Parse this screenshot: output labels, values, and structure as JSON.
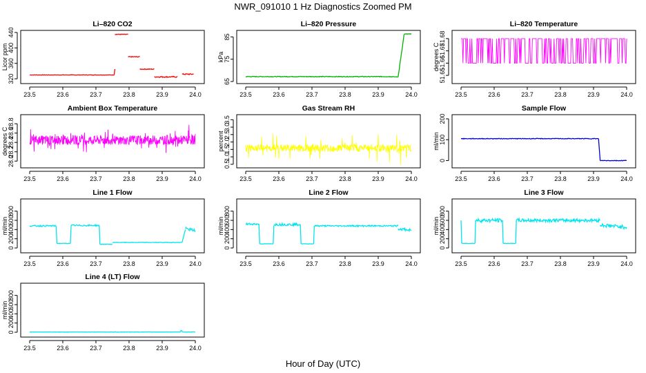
{
  "figure": {
    "title": "NWR_091010  1 Hz Diagnostics Zoomed PM",
    "xlabel": "Hour of Day (UTC)"
  },
  "chart_data": [
    {
      "type": "line",
      "title": "Li–820 CO2",
      "ylabel": "Licor ppm",
      "xlim": [
        23.5,
        24.0
      ],
      "xticks": [
        "23.5",
        "23.6",
        "23.7",
        "23.8",
        "23.9",
        "24.0"
      ],
      "ylim": [
        313,
        440
      ],
      "yticks": [
        "320",
        "360",
        "400",
        "440"
      ],
      "color": "#ff0000",
      "segments": [
        [
          23.5,
          330,
          23.755,
          330,
          0.5
        ],
        [
          23.755,
          330,
          23.757,
          345,
          0.5
        ],
        [
          23.757,
          435,
          23.797,
          435,
          0.8
        ],
        [
          23.797,
          377,
          23.832,
          377,
          1
        ],
        [
          23.832,
          345,
          23.876,
          345,
          1
        ],
        [
          23.876,
          325,
          23.946,
          325,
          1.5
        ],
        [
          23.96,
          332,
          23.995,
          332,
          1.5
        ]
      ]
    },
    {
      "type": "line",
      "title": "Li–820 Pressure",
      "ylabel": "kPa",
      "xlim": [
        23.5,
        24.0
      ],
      "xticks": [
        "23.5",
        "23.6",
        "23.7",
        "23.8",
        "23.9",
        "24.0"
      ],
      "ylim": [
        65,
        87
      ],
      "yticks": [
        "65",
        "75",
        "85"
      ],
      "color": "#00b000",
      "segments": [
        [
          23.5,
          67.2,
          23.95,
          67.2,
          0.15
        ],
        [
          23.95,
          67,
          23.96,
          67,
          0.15
        ],
        [
          23.96,
          67,
          23.978,
          86,
          0.3
        ],
        [
          23.978,
          86.3,
          24.0,
          86.3,
          0.15
        ]
      ]
    },
    {
      "type": "line",
      "title": "Li–820 Temperature",
      "ylabel": "degrees C",
      "xlim": [
        23.5,
        24.0
      ],
      "xticks": [
        "23.5",
        "23.6",
        "23.7",
        "23.8",
        "23.9",
        "24.0"
      ],
      "ylim": [
        51.645,
        51.685
      ],
      "yticks": [
        "51.65",
        "51.66",
        "51.67",
        "51.68"
      ],
      "color": "#ff00ff",
      "binary": [
        51.66,
        51.68
      ]
    },
    {
      "type": "line",
      "title": "Ambient Box Temperature",
      "ylabel": "degrees C",
      "xlim": [
        23.5,
        24.0
      ],
      "xticks": [
        "23.5",
        "23.6",
        "23.7",
        "23.8",
        "23.9",
        "24.0"
      ],
      "ylim": [
        27.9,
        28.95
      ],
      "yticks": [
        "28.0",
        "28.2",
        "28.4",
        "28.6",
        "28.8"
      ],
      "color": "#ff00ff",
      "noise": [
        28.45,
        0.1,
        0.25
      ]
    },
    {
      "type": "line",
      "title": "Gas Stream RH",
      "ylabel": "percent",
      "xlim": [
        23.5,
        24.0
      ],
      "xticks": [
        "23.5",
        "23.6",
        "23.7",
        "23.8",
        "23.9",
        "24.0"
      ],
      "ylim": [
        0.4,
        3.7
      ],
      "yticks": [
        "0.5",
        "1.0",
        "1.5",
        "2.0",
        "2.5",
        "3.0",
        "3.5"
      ],
      "color": "#ffff00",
      "noise": [
        1.6,
        0.25,
        0.9
      ]
    },
    {
      "type": "line",
      "title": "Sample Flow",
      "ylabel": "ml/min",
      "xlim": [
        23.5,
        24.0
      ],
      "xticks": [
        "23.5",
        "23.6",
        "23.7",
        "23.8",
        "23.9",
        "24.0"
      ],
      "ylim": [
        -25,
        210
      ],
      "yticks": [
        "0",
        "100",
        "200"
      ],
      "color": "#0000cc",
      "segments": [
        [
          23.5,
          105,
          23.915,
          105,
          1.5
        ],
        [
          23.915,
          105,
          23.92,
          0,
          1
        ],
        [
          23.92,
          0,
          24.0,
          0,
          1.5
        ]
      ]
    },
    {
      "type": "line",
      "title": "Line 1 Flow",
      "ylabel": "ml/min",
      "xlim": [
        23.5,
        24.0
      ],
      "xticks": [
        "23.5",
        "23.6",
        "23.7",
        "23.8",
        "23.9",
        "24.0"
      ],
      "ylim": [
        -60,
        1020
      ],
      "yticks": [
        "0",
        "200",
        "400",
        "600",
        "800"
      ],
      "color": "#00e5ee",
      "segments": [
        [
          23.5,
          480,
          23.58,
          480,
          15
        ],
        [
          23.58,
          480,
          23.582,
          100,
          4
        ],
        [
          23.582,
          100,
          23.623,
          100,
          4
        ],
        [
          23.623,
          100,
          23.625,
          490,
          4
        ],
        [
          23.625,
          490,
          23.71,
          490,
          15
        ],
        [
          23.71,
          490,
          23.712,
          80,
          4
        ],
        [
          23.712,
          80,
          23.75,
          80,
          5
        ],
        [
          23.75,
          120,
          23.96,
          120,
          5
        ],
        [
          23.96,
          120,
          23.97,
          400,
          10
        ],
        [
          23.97,
          420,
          24.0,
          380,
          30
        ]
      ]
    },
    {
      "type": "line",
      "title": "Line 2 Flow",
      "ylabel": "ml/min",
      "xlim": [
        23.5,
        24.0
      ],
      "xticks": [
        "23.5",
        "23.6",
        "23.7",
        "23.8",
        "23.9",
        "24.0"
      ],
      "ylim": [
        -60,
        1020
      ],
      "yticks": [
        "0",
        "200",
        "400",
        "600",
        "800"
      ],
      "color": "#00e5ee",
      "segments": [
        [
          23.5,
          520,
          23.54,
          520,
          20
        ],
        [
          23.54,
          520,
          23.542,
          90,
          4
        ],
        [
          23.542,
          90,
          23.583,
          90,
          4
        ],
        [
          23.583,
          90,
          23.585,
          490,
          4
        ],
        [
          23.585,
          510,
          23.665,
          510,
          25
        ],
        [
          23.665,
          510,
          23.667,
          90,
          4
        ],
        [
          23.667,
          90,
          23.705,
          90,
          4
        ],
        [
          23.705,
          90,
          23.707,
          480,
          4
        ],
        [
          23.707,
          480,
          23.96,
          480,
          15
        ],
        [
          23.96,
          420,
          24.0,
          380,
          30
        ]
      ]
    },
    {
      "type": "line",
      "title": "Line 3 Flow",
      "ylabel": "ml/min",
      "xlim": [
        23.5,
        24.0
      ],
      "xticks": [
        "23.5",
        "23.6",
        "23.7",
        "23.8",
        "23.9",
        "24.0"
      ],
      "ylim": [
        -60,
        1020
      ],
      "yticks": [
        "0",
        "200",
        "400",
        "600",
        "800"
      ],
      "color": "#00e5ee",
      "segments": [
        [
          23.5,
          600,
          23.502,
          100,
          4
        ],
        [
          23.502,
          100,
          23.542,
          100,
          4
        ],
        [
          23.542,
          100,
          23.544,
          600,
          4
        ],
        [
          23.544,
          600,
          23.625,
          600,
          40
        ],
        [
          23.625,
          600,
          23.627,
          100,
          4
        ],
        [
          23.627,
          100,
          23.665,
          100,
          4
        ],
        [
          23.665,
          100,
          23.667,
          600,
          4
        ],
        [
          23.667,
          600,
          23.92,
          600,
          35
        ],
        [
          23.92,
          500,
          24.0,
          450,
          40
        ]
      ]
    },
    {
      "type": "line",
      "title": "Line 4 (LT) Flow",
      "ylabel": "ml/min",
      "xlim": [
        23.5,
        24.0
      ],
      "xticks": [
        "23.5",
        "23.6",
        "23.7",
        "23.8",
        "23.9",
        "24.0"
      ],
      "ylim": [
        -60,
        1020
      ],
      "yticks": [
        "0",
        "200",
        "400",
        "600",
        "800"
      ],
      "color": "#00e5ee",
      "segments": [
        [
          23.5,
          5,
          23.955,
          5,
          4
        ],
        [
          23.955,
          5,
          23.957,
          45,
          2
        ],
        [
          23.957,
          45,
          23.962,
          5,
          2
        ],
        [
          23.962,
          5,
          24.0,
          5,
          4
        ]
      ]
    }
  ]
}
